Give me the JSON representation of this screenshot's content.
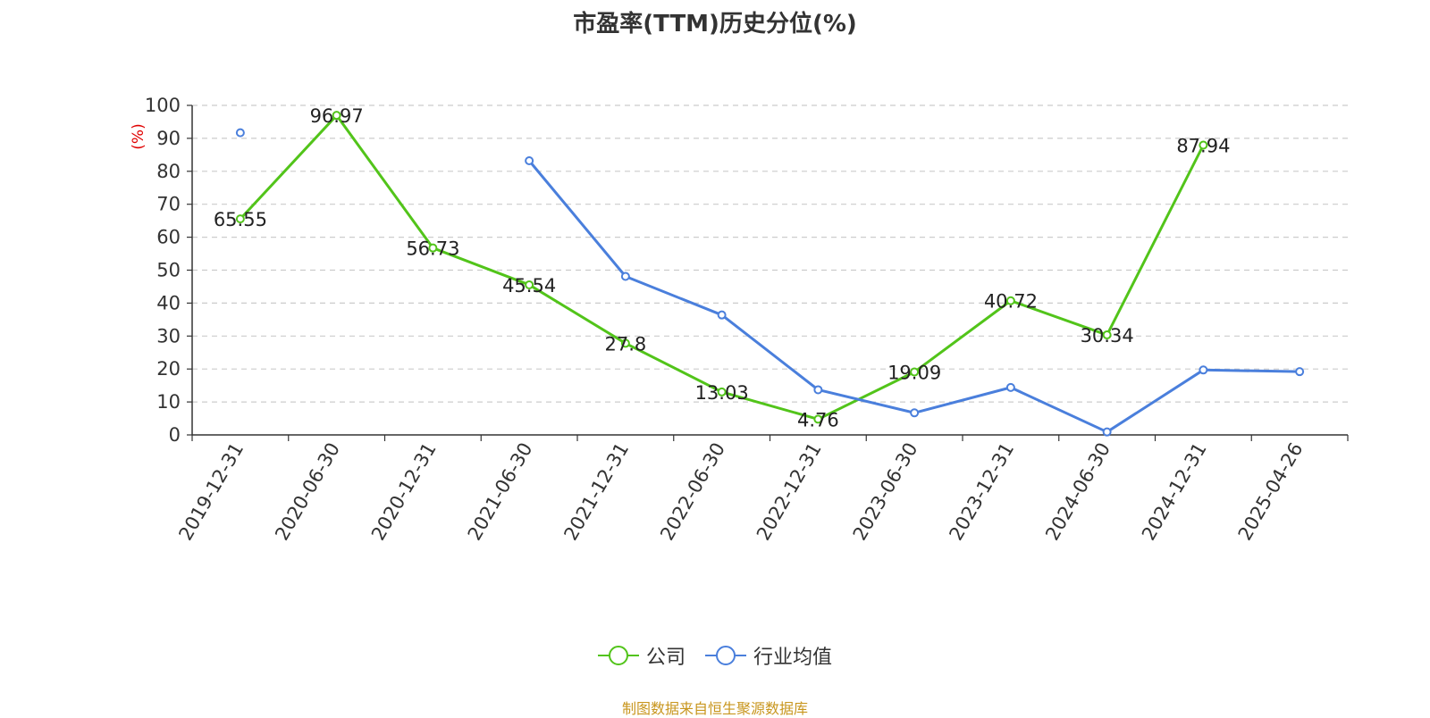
{
  "chart_data": {
    "type": "line",
    "title": "市盈率(TTM)历史分位(%)",
    "ylabel": "(%)",
    "xlabel": "",
    "ylim": [
      0,
      100
    ],
    "yticks": [
      0,
      10,
      20,
      30,
      40,
      50,
      60,
      70,
      80,
      90,
      100
    ],
    "grid": true,
    "legend_position": "bottom",
    "categories": [
      "2019-12-31",
      "2020-06-30",
      "2020-12-31",
      "2021-06-30",
      "2021-12-31",
      "2022-06-30",
      "2022-12-31",
      "2023-06-30",
      "2023-12-31",
      "2024-06-30",
      "2024-12-31",
      "2025-04-26"
    ],
    "series": [
      {
        "name": "公司",
        "color": "#52c41a",
        "values": [
          65.55,
          96.97,
          56.73,
          45.54,
          27.8,
          13.03,
          4.76,
          19.09,
          40.72,
          30.34,
          87.94,
          null
        ],
        "labels": [
          "65.55",
          "96.97",
          "56.73",
          "45.54",
          "27.8",
          "13.03",
          "4.76",
          "19.09",
          "40.72",
          "30.34",
          "87.94",
          ""
        ]
      },
      {
        "name": "行业均值",
        "color": "#4a7fdc",
        "values": [
          91.7,
          null,
          null,
          83.2,
          48.1,
          36.4,
          13.7,
          6.7,
          14.4,
          0.9,
          19.7,
          19.2
        ]
      }
    ]
  },
  "source_note": "制图数据来自恒生聚源数据库"
}
